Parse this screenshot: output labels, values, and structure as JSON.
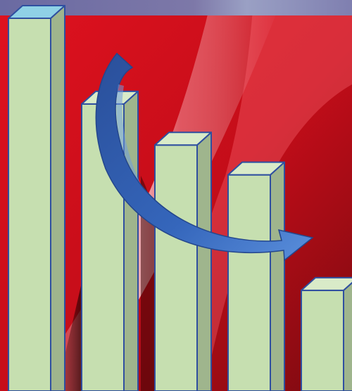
{
  "illustration": {
    "subject": "declining-3d-bar-columns",
    "bar_count": 5,
    "bar_heights_relative": [
      1.0,
      0.77,
      0.66,
      0.58,
      0.27
    ],
    "arrow_direction": "downward-trend",
    "colors": {
      "background_red": "#d8111f",
      "background_dark": "#5a0508",
      "highlight": "#f2b6ba",
      "top_band": "#6e6ea0",
      "bar_front": "#c6dfb0",
      "bar_side": "#9fb58d",
      "bar_top_default": "#d9ebc8",
      "bar_top_first": "#8fd1e6",
      "bar_outline": "#2f4fa0",
      "arrow_fill": "#2f5fb0",
      "arrow_light": "#6f9de0"
    }
  }
}
